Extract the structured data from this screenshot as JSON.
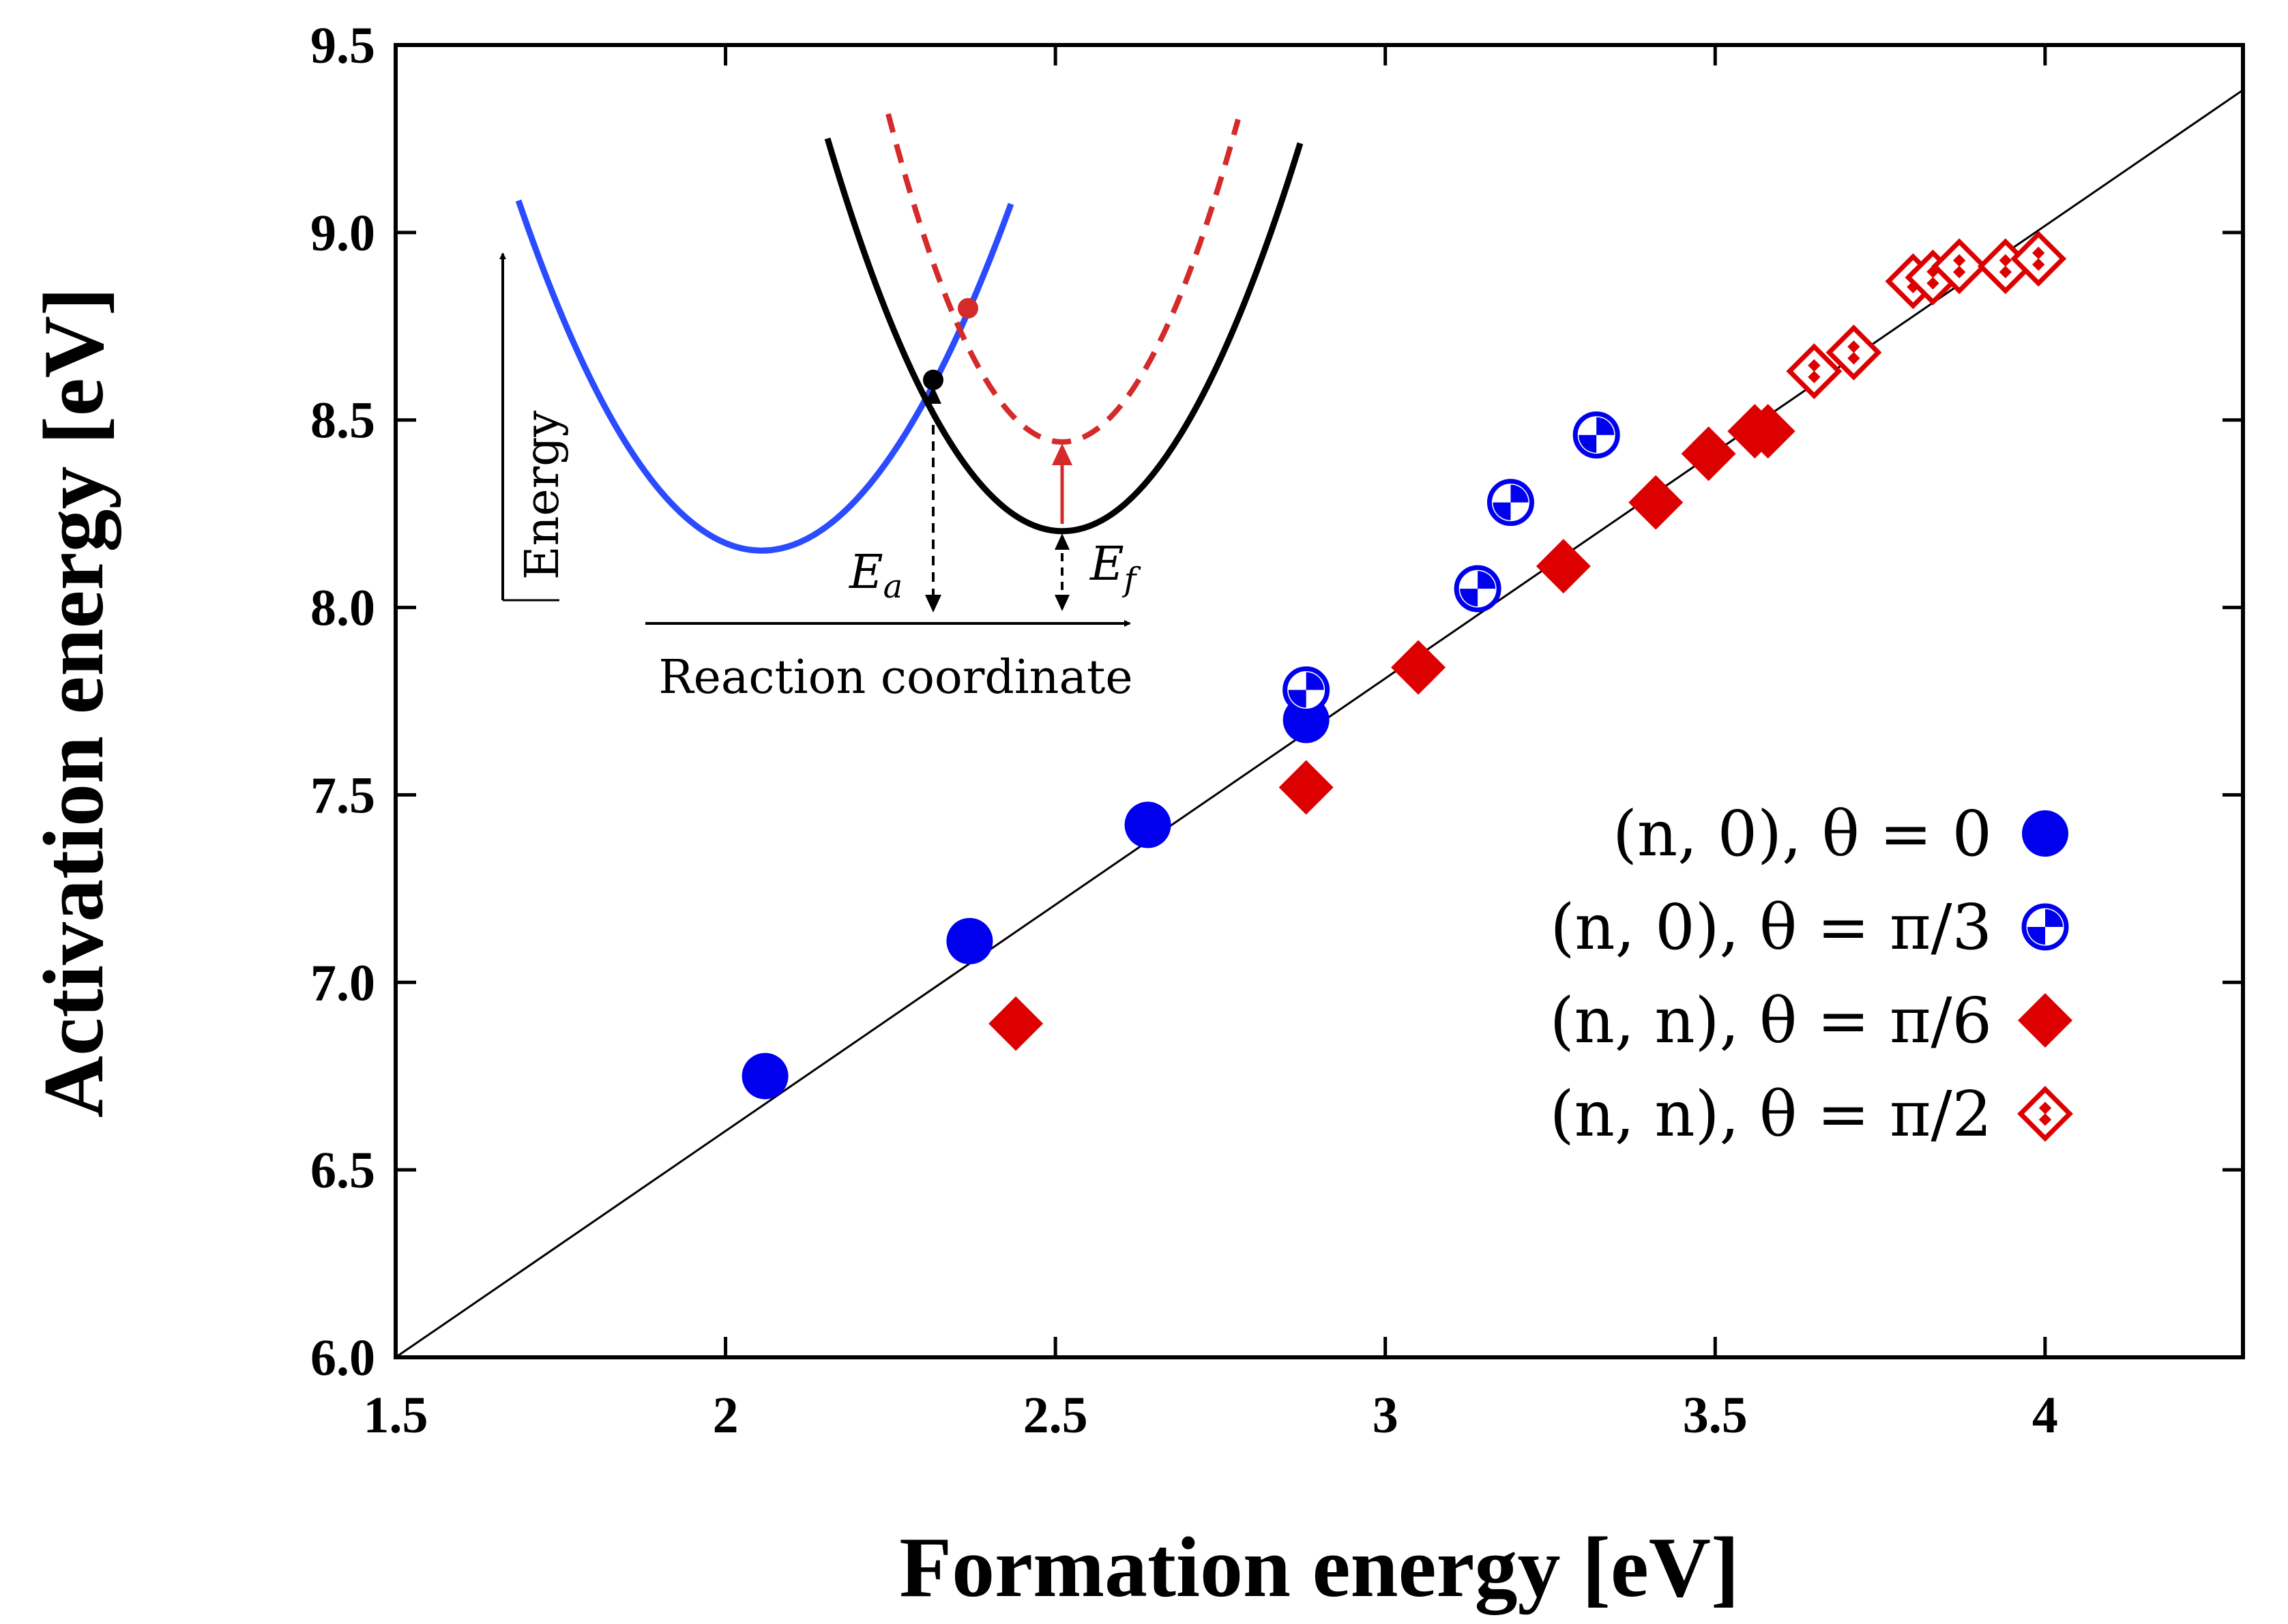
{
  "chart_data": {
    "type": "scatter",
    "xlabel": "Formation energy [eV]",
    "ylabel": "Activation energy [eV]",
    "xlim": [
      1.5,
      4.3
    ],
    "ylim": [
      6.0,
      9.5
    ],
    "xticks": [
      1.5,
      2,
      2.5,
      3,
      3.5,
      4
    ],
    "xtick_labels": [
      "1.5",
      "2",
      "2.5",
      "3",
      "3.5",
      "4"
    ],
    "yticks": [
      6.0,
      6.5,
      7.0,
      7.5,
      8.0,
      8.5,
      9.0,
      9.5
    ],
    "ytick_labels": [
      "6.0",
      "6.5",
      "7.0",
      "7.5",
      "8.0",
      "8.5",
      "9.0",
      "9.5"
    ],
    "grid": false,
    "legend_position": "bottom-right",
    "fit_line": {
      "x": [
        1.5,
        4.3
      ],
      "y": [
        6.0,
        9.38
      ]
    },
    "series": [
      {
        "name": "(n, 0), θ = 0",
        "marker": "filled-circle",
        "color": "#0000ee",
        "points": [
          [
            2.06,
            6.75
          ],
          [
            2.37,
            7.11
          ],
          [
            2.64,
            7.42
          ],
          [
            2.88,
            7.7
          ]
        ]
      },
      {
        "name": "(n, 0), θ = π/3",
        "marker": "checkered-circle",
        "color": "#0000ee",
        "points": [
          [
            2.88,
            7.78
          ],
          [
            3.14,
            8.05
          ],
          [
            3.19,
            8.28
          ],
          [
            3.32,
            8.46
          ]
        ]
      },
      {
        "name": "(n, n), θ = π/6",
        "marker": "filled-diamond",
        "color": "#dd0000",
        "points": [
          [
            2.44,
            6.89
          ],
          [
            2.88,
            7.52
          ],
          [
            3.05,
            7.84
          ],
          [
            3.27,
            8.11
          ],
          [
            3.41,
            8.28
          ],
          [
            3.49,
            8.41
          ],
          [
            3.56,
            8.47
          ],
          [
            3.58,
            8.47
          ]
        ]
      },
      {
        "name": "(n, n), θ = π/2",
        "marker": "checkered-diamond",
        "color": "#dd0000",
        "points": [
          [
            3.65,
            8.63
          ],
          [
            3.71,
            8.68
          ],
          [
            3.8,
            8.87
          ],
          [
            3.83,
            8.88
          ],
          [
            3.87,
            8.91
          ],
          [
            3.94,
            8.91
          ],
          [
            3.99,
            8.93
          ]
        ]
      }
    ],
    "inset": {
      "xlabel": "Reaction coordinate",
      "ylabel": "Energy",
      "annotations": [
        "E",
        "a",
        "E",
        "f"
      ]
    }
  }
}
